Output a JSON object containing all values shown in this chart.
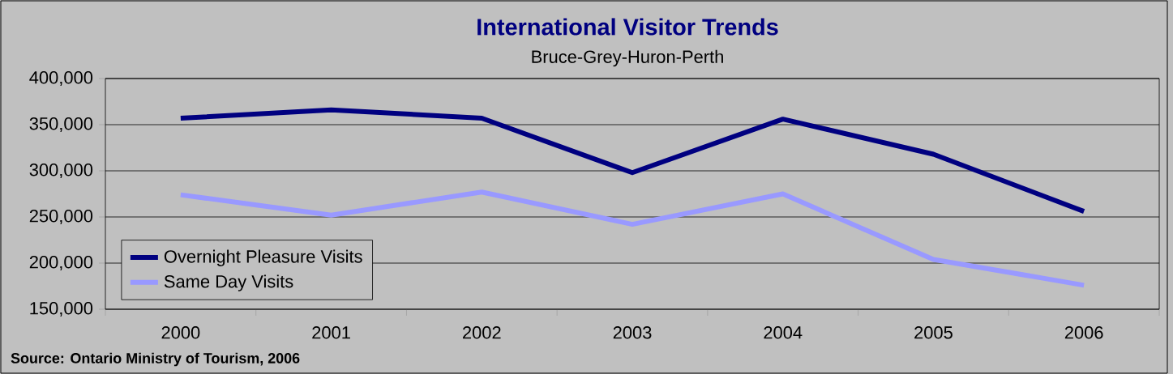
{
  "chart_data": {
    "type": "line",
    "title": "International Visitor Trends",
    "subtitle": "Bruce-Grey-Huron-Perth",
    "categories": [
      "2000",
      "2001",
      "2002",
      "2003",
      "2004",
      "2005",
      "2006"
    ],
    "series": [
      {
        "name": "Overnight Pleasure Visits",
        "color": "#000080",
        "values": [
          357000,
          366000,
          357000,
          298000,
          356000,
          318000,
          256000
        ]
      },
      {
        "name": "Same Day Visits",
        "color": "#9999ff",
        "values": [
          274000,
          252000,
          277000,
          242000,
          275000,
          204000,
          176000
        ]
      }
    ],
    "ylim": [
      150000,
      400000
    ],
    "yticks": [
      {
        "value": 150000,
        "label": "150,000"
      },
      {
        "value": 200000,
        "label": "200,000"
      },
      {
        "value": 250000,
        "label": "250,000"
      },
      {
        "value": 300000,
        "label": "300,000"
      },
      {
        "value": 350000,
        "label": "350,000"
      },
      {
        "value": 400000,
        "label": "400,000"
      }
    ],
    "grid": "y",
    "legend": "bottom left",
    "marker": "none",
    "line_style": "solid",
    "annotations": [
      "Source: Ontario Ministry of Tourism, 2006"
    ]
  }
}
